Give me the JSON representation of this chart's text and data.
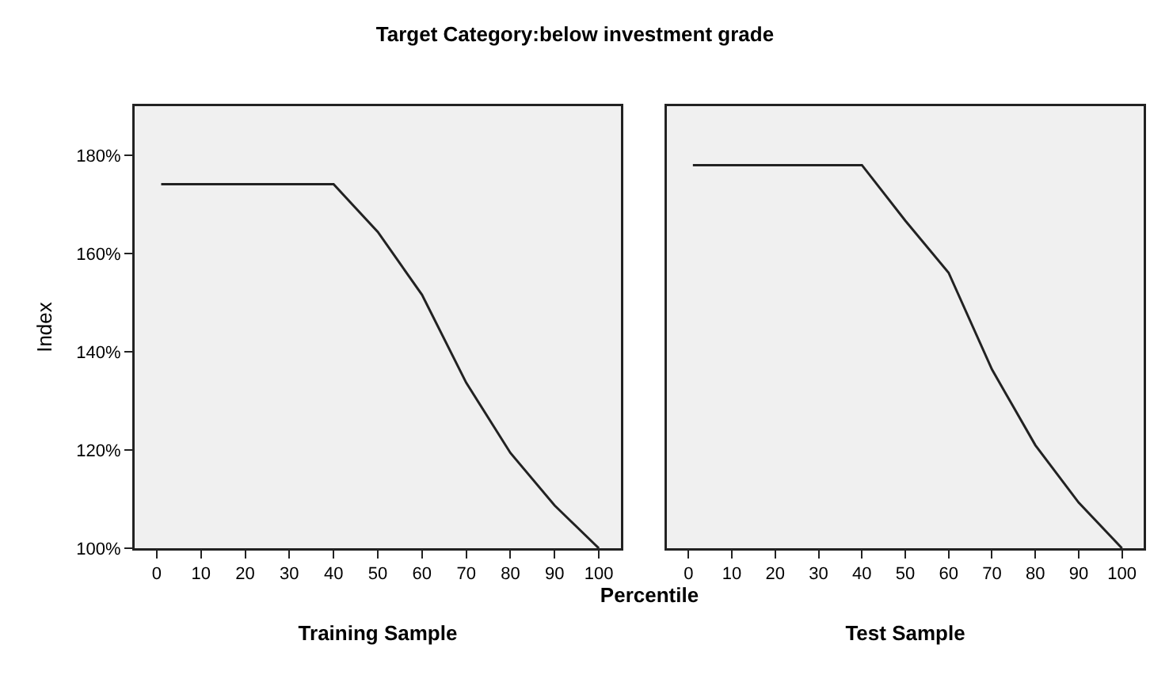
{
  "chart_data": [
    {
      "type": "line",
      "title": "Target Category:below investment grade",
      "ylabel": "Index",
      "xlabel": "Percentile",
      "annotations": [
        "Training Sample"
      ],
      "x": [
        1,
        40,
        50,
        60,
        70,
        80,
        90,
        100
      ],
      "series": [
        {
          "color": "#222222",
          "values": [
            174.1,
            174.1,
            164.4,
            151.6,
            133.7,
            119.4,
            108.7,
            100
          ]
        }
      ],
      "xlim": [
        -5,
        105
      ],
      "xticks": [
        0,
        10,
        20,
        30,
        40,
        50,
        60,
        70,
        80,
        90,
        100
      ],
      "ylim": [
        100,
        190
      ],
      "yticks": [
        {
          "value": 100,
          "label": "100%"
        },
        {
          "value": 120,
          "label": "120%"
        },
        {
          "value": 140,
          "label": "140%"
        },
        {
          "value": 160,
          "label": "160%"
        },
        {
          "value": 180,
          "label": "180%"
        }
      ],
      "grid": false,
      "line_style": "solid"
    },
    {
      "type": "line",
      "annotations": [
        "Test Sample"
      ],
      "x": [
        1,
        40,
        50,
        60,
        70,
        80,
        90,
        100
      ],
      "series": [
        {
          "color": "#222222",
          "values": [
            178.0,
            178.0,
            166.7,
            156.1,
            136.4,
            121.0,
            109.3,
            100
          ]
        }
      ],
      "xlim": [
        -5,
        105
      ],
      "xticks": [
        0,
        10,
        20,
        30,
        40,
        50,
        60,
        70,
        80,
        90,
        100
      ],
      "ylim": [
        100,
        190
      ],
      "grid": false,
      "line_style": "solid",
      "tick_labels": "x"
    }
  ]
}
